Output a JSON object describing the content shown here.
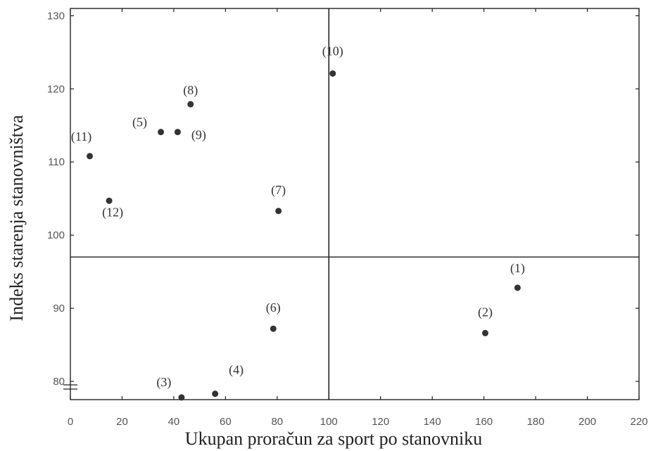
{
  "chart_data": {
    "type": "scatter",
    "title": "",
    "xlabel": "Ukupan proračun za sport po stanovniku",
    "ylabel": "Indeks starenja stanovništva",
    "xlim": [
      0,
      220
    ],
    "ylim": [
      77.5,
      131
    ],
    "x_ticks": [
      0,
      20,
      40,
      60,
      80,
      100,
      120,
      140,
      160,
      180,
      200,
      220
    ],
    "y_ticks": [
      80,
      90,
      100,
      110,
      120,
      130
    ],
    "y_tick_labels": [
      "80",
      "90",
      "100",
      "110",
      "120",
      "130"
    ],
    "axis_break_at_y": 80,
    "grid": false,
    "reference_lines": {
      "x": 100,
      "y": 97
    },
    "points": [
      {
        "label": "(1)",
        "x": 173,
        "y": 92.8
      },
      {
        "label": "(2)",
        "x": 160.5,
        "y": 86.6
      },
      {
        "label": "(3)",
        "x": 43,
        "y": 77.8
      },
      {
        "label": "(4)",
        "x": 56,
        "y": 78.3
      },
      {
        "label": "(6)",
        "x": 78.5,
        "y": 87.2
      },
      {
        "label": "(5)",
        "x": 35,
        "y": 114.1
      },
      {
        "label": "(7)",
        "x": 80.5,
        "y": 103.3
      },
      {
        "label": "(8)",
        "x": 46.5,
        "y": 117.9
      },
      {
        "label": "(9)",
        "x": 41.5,
        "y": 114.1
      },
      {
        "label": "(10)",
        "x": 101.5,
        "y": 122.1
      },
      {
        "label": "(11)",
        "x": 7.5,
        "y": 110.8
      },
      {
        "label": "(12)",
        "x": 15,
        "y": 104.7
      }
    ]
  }
}
